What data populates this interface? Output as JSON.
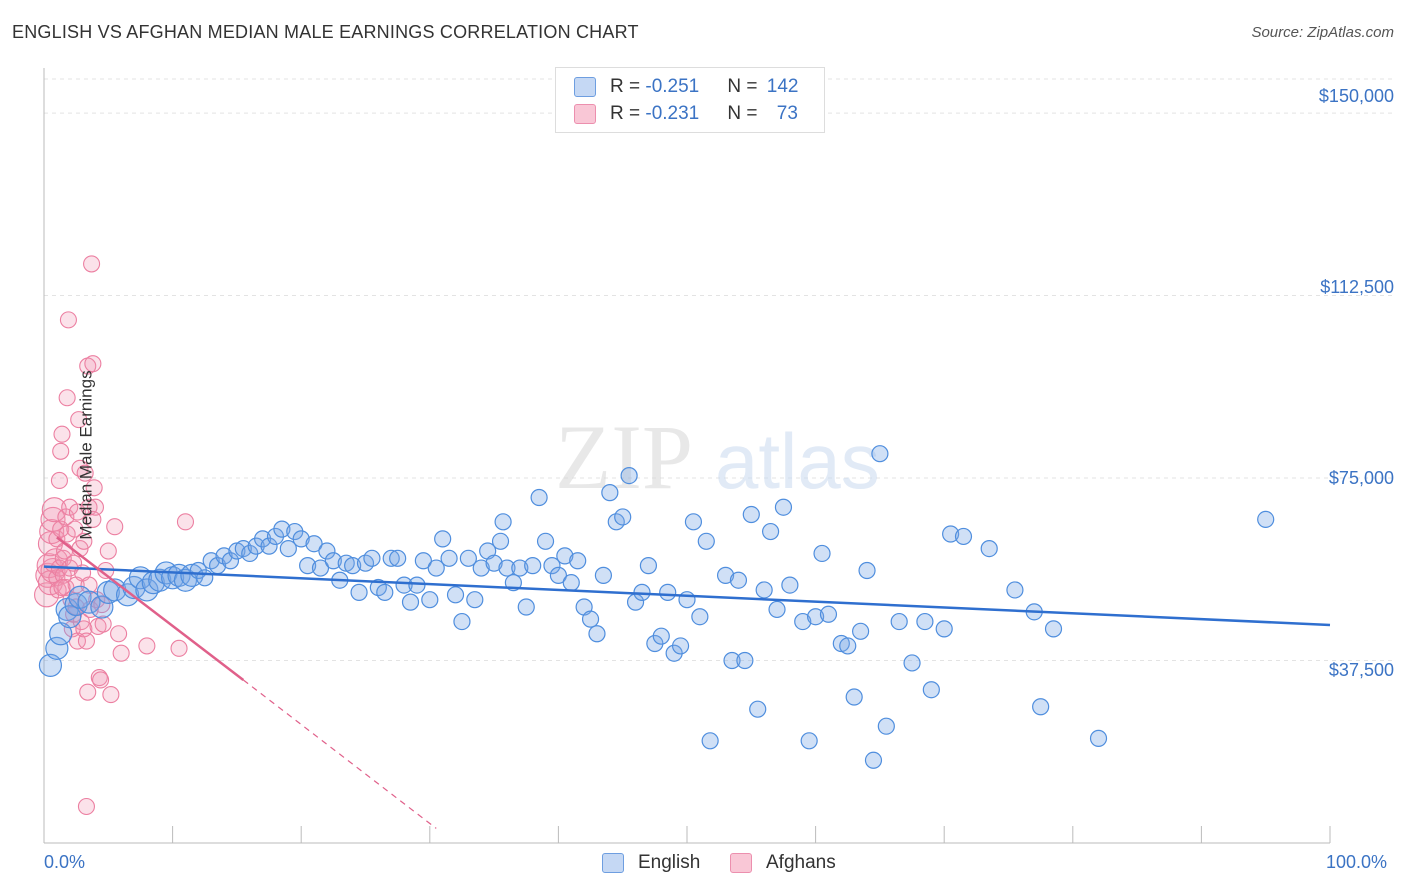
{
  "title": "ENGLISH VS AFGHAN MEDIAN MALE EARNINGS CORRELATION CHART",
  "source": "Source: ZipAtlas.com",
  "watermark": {
    "zip": "ZIP",
    "atlas": "atlas"
  },
  "legend": {
    "rows": [
      {
        "r_label": "R = ",
        "r_value": "-0.251",
        "n_label": "N = ",
        "n_value": "142"
      },
      {
        "r_label": "R = ",
        "r_value": "-0.231",
        "n_label": "N = ",
        "n_value": "73"
      }
    ]
  },
  "bottom_legend": {
    "english": "English",
    "afghans": "Afghans"
  },
  "colors": {
    "english": "#4f8ede",
    "afghans": "#ec7fa1",
    "english_line": "#2f6fcf",
    "afghans_line": "#e0608a"
  },
  "chart_data": {
    "type": "scatter",
    "title": "ENGLISH VS AFGHAN MEDIAN MALE EARNINGS CORRELATION CHART",
    "ylabel": "Median Male Earnings",
    "xlabel": "",
    "xlim": [
      0,
      100
    ],
    "ylim": [
      0,
      157000
    ],
    "x_tick_labels": [
      "0.0%",
      "100.0%"
    ],
    "y_ticks": [
      37500,
      75000,
      112500,
      150000
    ],
    "y_tick_labels": [
      "$37,500",
      "$75,000",
      "$112,500",
      "$150,000"
    ],
    "series": [
      {
        "name": "English",
        "R": -0.251,
        "N": 142,
        "trendline": {
          "x": [
            0,
            100
          ],
          "y": [
            56800,
            44800
          ]
        },
        "points": [
          [
            0.5,
            36500
          ],
          [
            1.0,
            40000
          ],
          [
            1.3,
            43000
          ],
          [
            1.8,
            48000
          ],
          [
            2.0,
            46500
          ],
          [
            2.5,
            49000
          ],
          [
            2.8,
            50500
          ],
          [
            3.5,
            49500
          ],
          [
            4.5,
            48500
          ],
          [
            5.0,
            51500
          ],
          [
            5.5,
            52000
          ],
          [
            6.5,
            51000
          ],
          [
            7.0,
            52500
          ],
          [
            7.5,
            54500
          ],
          [
            8.0,
            52000
          ],
          [
            8.5,
            53500
          ],
          [
            9.0,
            54000
          ],
          [
            9.5,
            55500
          ],
          [
            10.0,
            54500
          ],
          [
            10.5,
            55000
          ],
          [
            11.0,
            54000
          ],
          [
            11.5,
            55000
          ],
          [
            12.0,
            56000
          ],
          [
            12.5,
            54500
          ],
          [
            13.0,
            58000
          ],
          [
            13.5,
            57000
          ],
          [
            14.0,
            59000
          ],
          [
            14.5,
            58000
          ],
          [
            15.0,
            60000
          ],
          [
            15.5,
            60500
          ],
          [
            16.0,
            59500
          ],
          [
            16.5,
            61000
          ],
          [
            17.0,
            62500
          ],
          [
            17.5,
            61000
          ],
          [
            18.0,
            63000
          ],
          [
            18.5,
            64500
          ],
          [
            19.0,
            60500
          ],
          [
            19.5,
            64000
          ],
          [
            20.0,
            62500
          ],
          [
            20.5,
            57000
          ],
          [
            21.0,
            61500
          ],
          [
            21.5,
            56500
          ],
          [
            22.0,
            60000
          ],
          [
            22.5,
            58000
          ],
          [
            23.0,
            54000
          ],
          [
            23.5,
            57500
          ],
          [
            24.0,
            57000
          ],
          [
            24.5,
            51500
          ],
          [
            25.0,
            57500
          ],
          [
            25.5,
            58500
          ],
          [
            26.0,
            52500
          ],
          [
            26.5,
            51500
          ],
          [
            27.0,
            58500
          ],
          [
            27.5,
            58500
          ],
          [
            28.0,
            53000
          ],
          [
            28.5,
            49500
          ],
          [
            29.0,
            53000
          ],
          [
            29.5,
            58000
          ],
          [
            30.0,
            50000
          ],
          [
            30.5,
            56500
          ],
          [
            31.0,
            62500
          ],
          [
            31.5,
            58500
          ],
          [
            32.0,
            51000
          ],
          [
            32.5,
            45500
          ],
          [
            33.0,
            58500
          ],
          [
            33.5,
            50000
          ],
          [
            34.0,
            56500
          ],
          [
            34.5,
            60000
          ],
          [
            35.0,
            57500
          ],
          [
            35.5,
            62000
          ],
          [
            35.7,
            66000
          ],
          [
            36.0,
            56500
          ],
          [
            36.5,
            53500
          ],
          [
            37.0,
            56500
          ],
          [
            37.5,
            48500
          ],
          [
            38.0,
            57000
          ],
          [
            38.5,
            71000
          ],
          [
            39.0,
            62000
          ],
          [
            39.5,
            57000
          ],
          [
            40.0,
            55000
          ],
          [
            40.5,
            59000
          ],
          [
            41.0,
            53500
          ],
          [
            41.5,
            58000
          ],
          [
            42.0,
            48500
          ],
          [
            42.5,
            46000
          ],
          [
            43.0,
            43000
          ],
          [
            43.5,
            55000
          ],
          [
            44.0,
            72000
          ],
          [
            44.5,
            66000
          ],
          [
            45.0,
            67000
          ],
          [
            45.5,
            75500
          ],
          [
            46.0,
            49500
          ],
          [
            46.5,
            51500
          ],
          [
            47.0,
            57000
          ],
          [
            47.5,
            41000
          ],
          [
            48.0,
            42500
          ],
          [
            48.5,
            51500
          ],
          [
            49.0,
            39000
          ],
          [
            49.5,
            40500
          ],
          [
            50.0,
            50000
          ],
          [
            50.5,
            66000
          ],
          [
            51.0,
            46500
          ],
          [
            51.5,
            62000
          ],
          [
            51.8,
            21000
          ],
          [
            53.0,
            55000
          ],
          [
            53.5,
            37500
          ],
          [
            54.0,
            54000
          ],
          [
            54.5,
            37500
          ],
          [
            55.0,
            67500
          ],
          [
            55.5,
            27500
          ],
          [
            56.0,
            52000
          ],
          [
            56.5,
            64000
          ],
          [
            57.0,
            48000
          ],
          [
            57.5,
            69000
          ],
          [
            58.0,
            53000
          ],
          [
            59.0,
            45500
          ],
          [
            59.5,
            21000
          ],
          [
            60.0,
            46500
          ],
          [
            60.5,
            59500
          ],
          [
            61.0,
            47000
          ],
          [
            62.0,
            41000
          ],
          [
            62.5,
            40500
          ],
          [
            63.0,
            30000
          ],
          [
            63.5,
            43500
          ],
          [
            64.0,
            56000
          ],
          [
            64.5,
            17000
          ],
          [
            65.0,
            80000
          ],
          [
            65.5,
            24000
          ],
          [
            66.5,
            45500
          ],
          [
            67.5,
            37000
          ],
          [
            68.5,
            45500
          ],
          [
            69.0,
            31500
          ],
          [
            70.0,
            44000
          ],
          [
            70.5,
            63500
          ],
          [
            71.5,
            63000
          ],
          [
            73.5,
            60500
          ],
          [
            75.5,
            52000
          ],
          [
            77.0,
            47500
          ],
          [
            77.5,
            28000
          ],
          [
            78.5,
            44000
          ],
          [
            82.0,
            21500
          ],
          [
            95.0,
            66500
          ]
        ]
      },
      {
        "name": "Afghans",
        "R": -0.231,
        "N": 73,
        "trendline": {
          "x": [
            1,
            15.5,
            30.5
          ],
          "y": [
            62800,
            33500,
            3000
          ]
        },
        "points": [
          [
            0.2,
            51000
          ],
          [
            0.3,
            55000
          ],
          [
            0.4,
            57000
          ],
          [
            0.5,
            53500
          ],
          [
            0.5,
            61500
          ],
          [
            0.6,
            64000
          ],
          [
            0.7,
            66500
          ],
          [
            0.7,
            56000
          ],
          [
            0.8,
            68500
          ],
          [
            0.9,
            58000
          ],
          [
            1.0,
            54500
          ],
          [
            1.0,
            62500
          ],
          [
            1.1,
            52000
          ],
          [
            1.2,
            74500
          ],
          [
            1.2,
            56500
          ],
          [
            1.3,
            80500
          ],
          [
            1.3,
            64500
          ],
          [
            1.4,
            84000
          ],
          [
            1.5,
            55000
          ],
          [
            1.5,
            58500
          ],
          [
            1.6,
            60000
          ],
          [
            1.7,
            67000
          ],
          [
            1.7,
            52500
          ],
          [
            1.8,
            91500
          ],
          [
            1.8,
            63500
          ],
          [
            1.9,
            107500
          ],
          [
            2.0,
            69000
          ],
          [
            2.0,
            56500
          ],
          [
            2.1,
            50000
          ],
          [
            2.2,
            44000
          ],
          [
            2.3,
            57500
          ],
          [
            2.3,
            47000
          ],
          [
            2.4,
            64500
          ],
          [
            2.5,
            53000
          ],
          [
            2.5,
            48500
          ],
          [
            2.6,
            68000
          ],
          [
            2.6,
            41500
          ],
          [
            2.7,
            87000
          ],
          [
            2.8,
            77000
          ],
          [
            2.8,
            60500
          ],
          [
            2.9,
            45500
          ],
          [
            3.0,
            55500
          ],
          [
            3.1,
            62000
          ],
          [
            3.1,
            44000
          ],
          [
            3.2,
            76000
          ],
          [
            3.3,
            7500
          ],
          [
            3.3,
            41500
          ],
          [
            3.4,
            98000
          ],
          [
            3.4,
            31000
          ],
          [
            3.5,
            69000
          ],
          [
            3.5,
            53000
          ],
          [
            3.6,
            48000
          ],
          [
            3.7,
            119000
          ],
          [
            3.8,
            98500
          ],
          [
            3.8,
            66500
          ],
          [
            3.9,
            73000
          ],
          [
            4.0,
            69000
          ],
          [
            4.1,
            50000
          ],
          [
            4.2,
            44500
          ],
          [
            4.3,
            34000
          ],
          [
            4.4,
            33500
          ],
          [
            4.5,
            49000
          ],
          [
            4.6,
            45000
          ],
          [
            4.8,
            56000
          ],
          [
            5.0,
            60000
          ],
          [
            5.2,
            30500
          ],
          [
            5.5,
            65000
          ],
          [
            5.8,
            43000
          ],
          [
            6.0,
            39000
          ],
          [
            8.0,
            40500
          ],
          [
            10.5,
            40000
          ],
          [
            11.0,
            66000
          ],
          [
            1.4,
            52500
          ]
        ]
      }
    ]
  }
}
